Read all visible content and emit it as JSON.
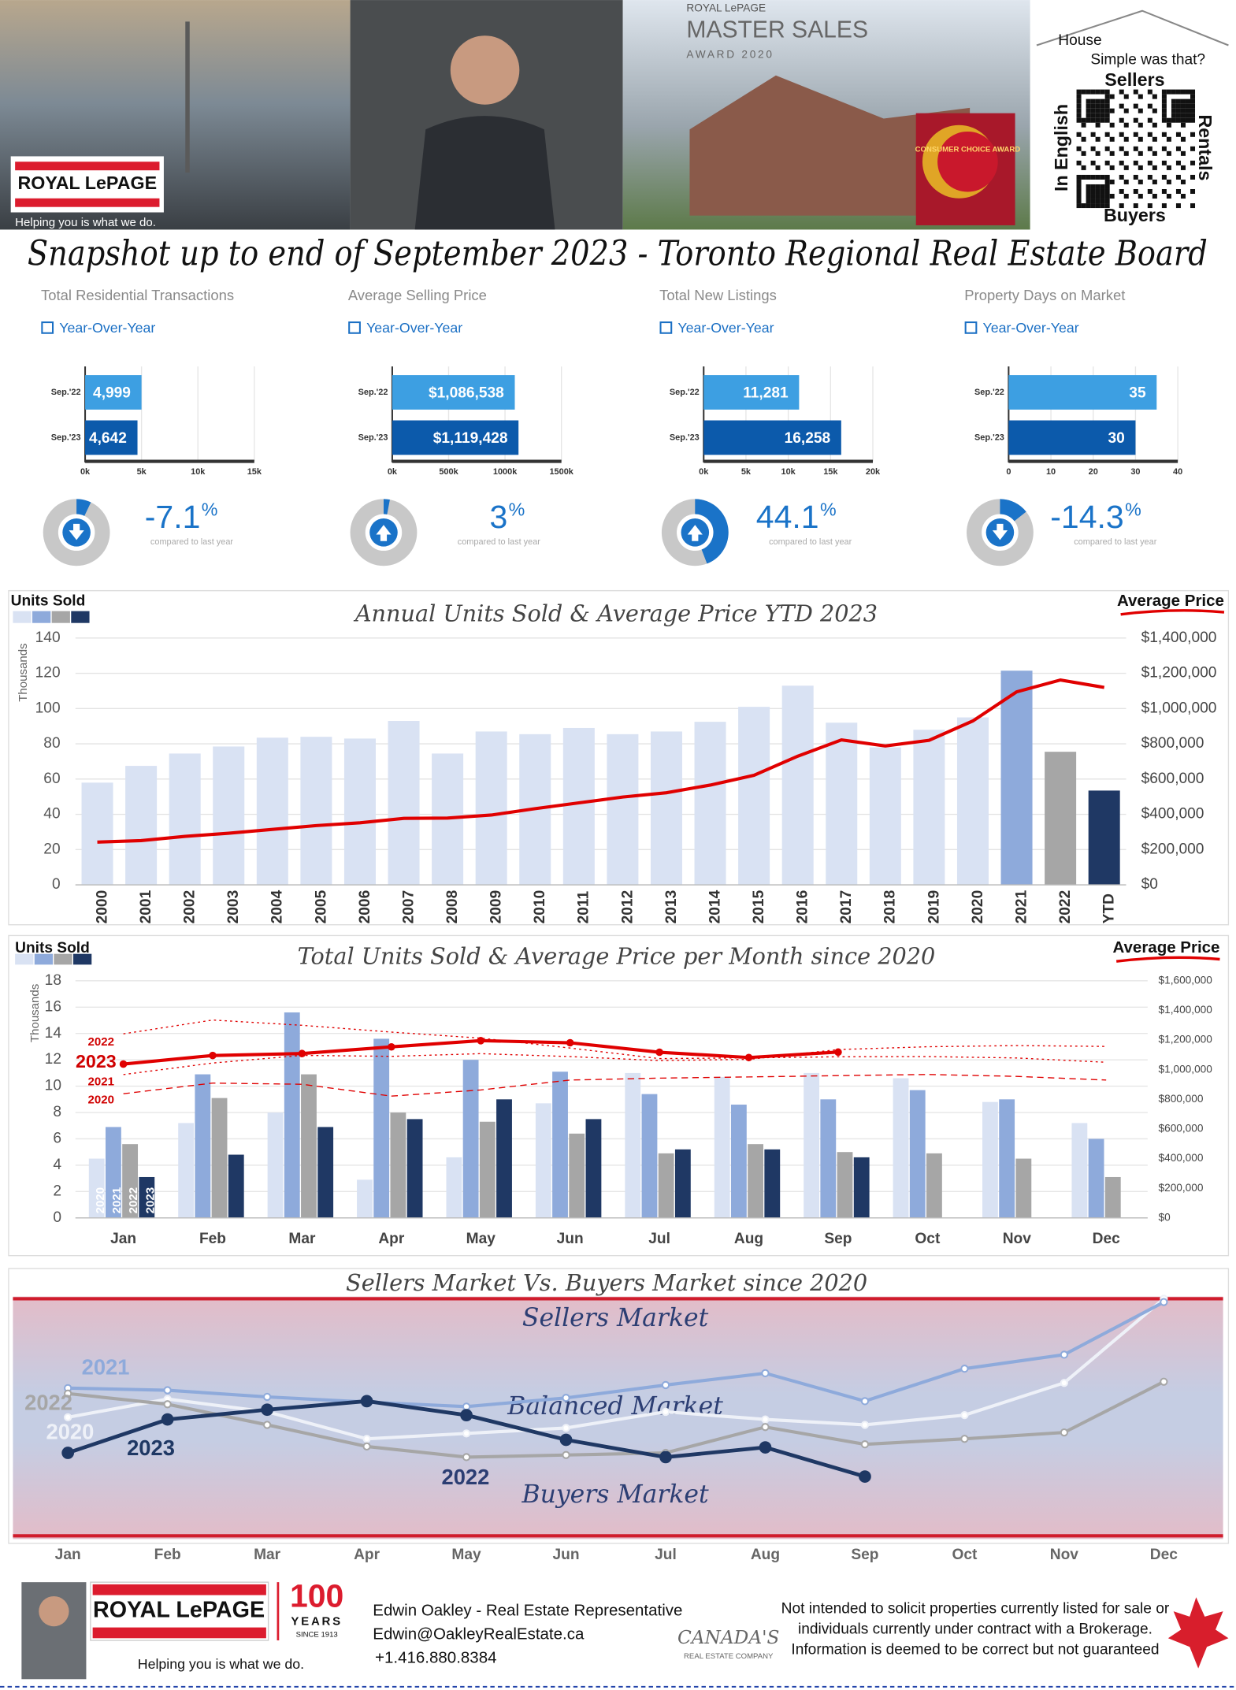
{
  "header": {
    "logo": "ROYAL LePAGE",
    "tagline": "Helping you is what we do.",
    "award_brand": "ROYAL LePAGE",
    "award_title": "MASTER SALES",
    "award_year": "AWARD 2020",
    "badge": "CONSUMER CHOICE AWARD",
    "qr_title_1": "House",
    "qr_title_2": "Simple was that?",
    "qr_top": "Sellers",
    "qr_bottom": "Buyers",
    "qr_right": "Rentals",
    "qr_left": "In English"
  },
  "title": "Snapshot up to end of September 2023 - Toronto Regional Real Estate Board",
  "chart_data": [
    {
      "type": "hbar",
      "title": "Total Residential Transactions",
      "subtitle": "Year-Over-Year",
      "categories": [
        "Sep.'22",
        "Sep.'23"
      ],
      "values": [
        4999,
        4642
      ],
      "value_labels": [
        "4,999",
        "4,642"
      ],
      "colors": [
        "#3d9fe2",
        "#0c5aab"
      ],
      "xlim": [
        0,
        15000
      ],
      "xticks": [
        {
          "value": 0,
          "label": "0k"
        },
        {
          "value": 5000,
          "label": "5k"
        },
        {
          "value": 10000,
          "label": "10k"
        },
        {
          "value": 15000,
          "label": "15k"
        }
      ],
      "grid": true,
      "change": -7.1,
      "change_unit": "%",
      "change_note": "compared to last year"
    },
    {
      "type": "hbar",
      "title": "Average Selling Price",
      "subtitle": "Year-Over-Year",
      "categories": [
        "Sep.'22",
        "Sep.'23"
      ],
      "values": [
        1086538,
        1119428
      ],
      "value_labels": [
        "$1,086,538",
        "$1,119,428"
      ],
      "colors": [
        "#3d9fe2",
        "#0c5aab"
      ],
      "xlim": [
        0,
        1500000
      ],
      "xticks": [
        {
          "value": 0,
          "label": "0k"
        },
        {
          "value": 500000,
          "label": "500k"
        },
        {
          "value": 1000000,
          "label": "1000k"
        },
        {
          "value": 1500000,
          "label": "1500k"
        }
      ],
      "grid": true,
      "change": 3,
      "change_unit": "%",
      "change_note": "compared to last year"
    },
    {
      "type": "hbar",
      "title": "Total New Listings",
      "subtitle": "Year-Over-Year",
      "categories": [
        "Sep.'22",
        "Sep.'23"
      ],
      "values": [
        11281,
        16258
      ],
      "value_labels": [
        "11,281",
        "16,258"
      ],
      "colors": [
        "#3d9fe2",
        "#0c5aab"
      ],
      "xlim": [
        0,
        20000
      ],
      "xticks": [
        {
          "value": 0,
          "label": "0k"
        },
        {
          "value": 5000,
          "label": "5k"
        },
        {
          "value": 10000,
          "label": "10k"
        },
        {
          "value": 15000,
          "label": "15k"
        },
        {
          "value": 20000,
          "label": "20k"
        }
      ],
      "grid": true,
      "change": 44.1,
      "change_unit": "%",
      "change_note": "compared to last year"
    },
    {
      "type": "hbar",
      "title": "Property Days on Market",
      "subtitle": "Year-Over-Year",
      "categories": [
        "Sep.'22",
        "Sep.'23"
      ],
      "values": [
        35,
        30
      ],
      "colors": [
        "#3d9fe2",
        "#0c5aab"
      ],
      "xlim": [
        0,
        40
      ],
      "xticks": [
        0,
        10,
        20,
        30,
        40
      ],
      "grid": true,
      "change": -14.3,
      "change_unit": "%",
      "change_note": "compared to last year"
    },
    {
      "type": "bar_line",
      "title": "Annual Units Sold & Average Price YTD 2023",
      "ylabel": "Thousands",
      "categories": [
        "2000",
        "2001",
        "2002",
        "2003",
        "2004",
        "2005",
        "2006",
        "2007",
        "2008",
        "2009",
        "2010",
        "2011",
        "2012",
        "2013",
        "2014",
        "2015",
        "2016",
        "2017",
        "2018",
        "2019",
        "2020",
        "2021",
        "2022",
        "YTD"
      ],
      "series": [
        {
          "name": "Units Sold",
          "colors": [
            "#d9e2f3",
            "#d9e2f3",
            "#d9e2f3",
            "#d9e2f3",
            "#d9e2f3",
            "#d9e2f3",
            "#d9e2f3",
            "#d9e2f3",
            "#d9e2f3",
            "#d9e2f3",
            "#d9e2f3",
            "#d9e2f3",
            "#d9e2f3",
            "#d9e2f3",
            "#d9e2f3",
            "#d9e2f3",
            "#d9e2f3",
            "#d9e2f3",
            "#d9e2f3",
            "#d9e2f3",
            "#d9e2f3",
            "#8eaadb",
            "#a6a6a6",
            "#1f3864"
          ],
          "values": [
            58,
            67.5,
            74.5,
            78.5,
            83.5,
            84,
            83,
            93,
            74.5,
            87,
            85.5,
            89,
            85.5,
            87,
            92.5,
            101,
            113,
            92,
            78,
            88,
            95,
            121.5,
            75.5,
            53.5
          ]
        },
        {
          "name": "Average Price",
          "color": "#e00000",
          "axis": "y2",
          "values": [
            243000,
            251000,
            275000,
            293000,
            315000,
            336000,
            352000,
            377000,
            379000,
            396000,
            432000,
            465000,
            498000,
            523000,
            566000,
            622000,
            730000,
            822000,
            788000,
            820000,
            930000,
            1095000,
            1162000,
            1120000
          ]
        }
      ],
      "ylim": [
        0,
        140
      ],
      "yticks": [
        0,
        20,
        40,
        60,
        80,
        100,
        120,
        140
      ],
      "y2lim": [
        0,
        1400000
      ],
      "y2ticks": [
        {
          "value": 0,
          "label": "$0"
        },
        {
          "value": 200000,
          "label": "$200,000"
        },
        {
          "value": 400000,
          "label": "$400,000"
        },
        {
          "value": 600000,
          "label": "$600,000"
        },
        {
          "value": 800000,
          "label": "$800,000"
        },
        {
          "value": 1000000,
          "label": "$1,000,000"
        },
        {
          "value": 1200000,
          "label": "$1,200,000"
        },
        {
          "value": 1400000,
          "label": "$1,400,000"
        }
      ],
      "grid": true
    },
    {
      "type": "grouped_bar_line",
      "title": "Total Units Sold & Average Price per Month since 2020",
      "ylabel": "Thousands",
      "bar_legend": "Units Sold",
      "line_legend": "Average Price",
      "line_legend_color": "#e00000",
      "categories": [
        "Jan",
        "Feb",
        "Mar",
        "Apr",
        "May",
        "Jun",
        "Jul",
        "Aug",
        "Sep",
        "Oct",
        "Nov",
        "Dec"
      ],
      "series": [
        {
          "name": "2020",
          "color": "#d9e2f3",
          "values": [
            4.5,
            7.2,
            8.0,
            2.9,
            4.6,
            8.7,
            11.0,
            10.7,
            11.0,
            10.6,
            8.8,
            7.2
          ]
        },
        {
          "name": "2021",
          "color": "#8eaadb",
          "values": [
            6.9,
            10.9,
            15.6,
            13.6,
            12.0,
            11.1,
            9.4,
            8.6,
            9.0,
            9.7,
            9.0,
            6.0
          ]
        },
        {
          "name": "2022",
          "color": "#a6a6a6",
          "values": [
            5.6,
            9.1,
            10.9,
            8.0,
            7.3,
            6.4,
            4.9,
            5.6,
            5.0,
            4.9,
            4.5,
            3.1
          ]
        },
        {
          "name": "2023",
          "color": "#1f3864",
          "values": [
            3.1,
            4.8,
            6.9,
            7.5,
            9.0,
            7.5,
            5.2,
            5.2,
            4.6,
            null,
            null,
            null
          ]
        },
        {
          "name": "2020",
          "color": "#e00000",
          "axis": "y2",
          "style": "dashed",
          "values": [
            838000,
            910000,
            902000,
            822000,
            863000,
            930000,
            943000,
            951000,
            960000,
            968000,
            955000,
            930000
          ]
        },
        {
          "name": "2021",
          "color": "#e00000",
          "axis": "y2",
          "style": "dotted",
          "values": [
            967000,
            1045000,
            1097000,
            1090000,
            1108000,
            1089000,
            1062000,
            1070000,
            1136000,
            1155000,
            1163000,
            1157000
          ]
        },
        {
          "name": "2022",
          "color": "#e00000",
          "axis": "y2",
          "style": "dotted",
          "values": [
            1242000,
            1335000,
            1300000,
            1254000,
            1213000,
            1146000,
            1075000,
            1080000,
            1087000,
            1089000,
            1079000,
            1050000
          ]
        },
        {
          "name": "2023",
          "color": "#e00000",
          "axis": "y2",
          "style": "solid",
          "values": [
            1038000,
            1096000,
            1109000,
            1154000,
            1196000,
            1182000,
            1118000,
            1082000,
            1119000,
            null,
            null,
            null
          ]
        }
      ],
      "ylim": [
        0,
        18
      ],
      "yticks": [
        0,
        2,
        4,
        6,
        8,
        10,
        12,
        14,
        16,
        18
      ],
      "y2lim": [
        0,
        1600000
      ],
      "y2ticks": [
        {
          "value": 0,
          "label": "$0"
        },
        {
          "value": 200000,
          "label": "$200,000"
        },
        {
          "value": 400000,
          "label": "$400,000"
        },
        {
          "value": 600000,
          "label": "$600,000"
        },
        {
          "value": 800000,
          "label": "$800,000"
        },
        {
          "value": 1000000,
          "label": "$1,000,000"
        },
        {
          "value": 1200000,
          "label": "$1,200,000"
        },
        {
          "value": 1400000,
          "label": "$1,400,000"
        },
        {
          "value": 1600000,
          "label": "$1,600,000"
        }
      ],
      "grid": true
    },
    {
      "type": "line",
      "title": "Sellers Market Vs. Buyers Market since 2020",
      "bands": [
        "Sellers Market",
        "Balanced Market",
        "Buyers Market"
      ],
      "annotation": "2022",
      "categories": [
        "Jan",
        "Feb",
        "Mar",
        "Apr",
        "May",
        "Jun",
        "Jul",
        "Aug",
        "Sep",
        "Oct",
        "Nov",
        "Dec"
      ],
      "series": [
        {
          "name": "2020",
          "color": "#eef1f8",
          "values": [
            50,
            57.7,
            52.3,
            40.9,
            43.2,
            45.5,
            52.3,
            49.1,
            46.8,
            50.9,
            64.5,
            100
          ]
        },
        {
          "name": "2021",
          "color": "#8eaadb",
          "values": [
            62.3,
            61.4,
            58.6,
            56.4,
            54.5,
            58.2,
            63.6,
            68.6,
            56.8,
            70.5,
            76.4,
            98.6
          ]
        },
        {
          "name": "2022",
          "color": "#a6a6a6",
          "values": [
            60,
            55.5,
            46.8,
            37.7,
            33.2,
            34.1,
            35,
            45.9,
            38.6,
            40.9,
            43.6,
            65
          ]
        },
        {
          "name": "2023",
          "color": "#1f3864",
          "values": [
            35,
            49.1,
            53.2,
            56.8,
            50.9,
            40.5,
            33.2,
            37.3,
            25,
            null,
            null,
            null
          ]
        }
      ],
      "ylim": [
        0,
        100
      ]
    }
  ],
  "footer": {
    "logo": "ROYAL LePAGE",
    "years_num": "100",
    "years": "YEARS",
    "since": "SINCE 1913",
    "tagline": "Helping you is what we do.",
    "name": "Edwin Oakley - Real Estate Representative",
    "email": "Edwin@OakleyRealEstate.ca",
    "phone": "+1.416.880.8384",
    "company_1": "CANADA'S",
    "company_2": "REAL ESTATE COMPANY",
    "disclaimer": [
      "Not intended to solicit properties currently listed for sale or",
      "individuals currently under contract with a Brokerage.",
      "Information is deemed to be correct but not guaranteed"
    ]
  }
}
